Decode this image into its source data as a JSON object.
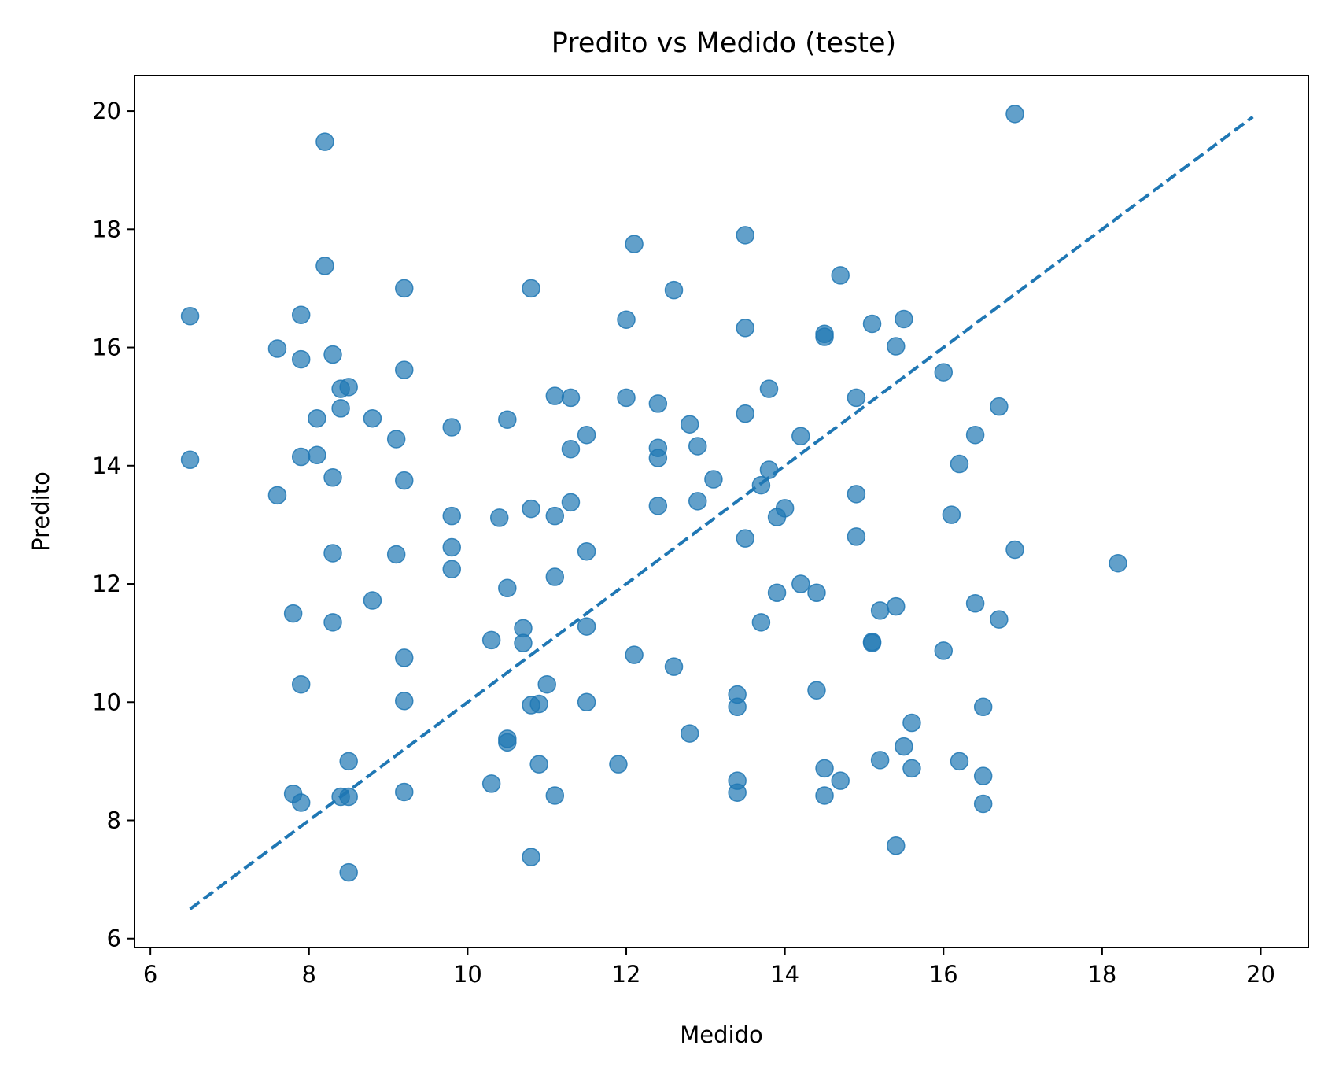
{
  "chart_data": {
    "type": "scatter",
    "title": "Predito vs Medido (teste)",
    "xlabel": "Medido",
    "ylabel": "Predito",
    "xlim": [
      5.8,
      20.6
    ],
    "ylim": [
      5.85,
      20.6
    ],
    "xticks": [
      6,
      8,
      10,
      12,
      14,
      16,
      18,
      20
    ],
    "yticks": [
      6,
      8,
      10,
      12,
      14,
      16,
      18,
      20
    ],
    "grid": false,
    "colors": {
      "points": "#1f77b4",
      "reference_line": "#1f77b4"
    },
    "reference_line": {
      "style": "dashed",
      "x": [
        6.5,
        19.9
      ],
      "y": [
        6.5,
        19.9
      ]
    },
    "series": [
      {
        "points": [
          [
            6.5,
            16.53
          ],
          [
            6.5,
            14.1
          ],
          [
            7.6,
            15.98
          ],
          [
            7.6,
            13.5
          ],
          [
            7.8,
            11.5
          ],
          [
            7.8,
            8.45
          ],
          [
            7.9,
            16.55
          ],
          [
            7.9,
            15.8
          ],
          [
            7.9,
            14.15
          ],
          [
            7.9,
            10.3
          ],
          [
            7.9,
            8.3
          ],
          [
            8.1,
            14.8
          ],
          [
            8.1,
            14.18
          ],
          [
            8.2,
            19.48
          ],
          [
            8.2,
            17.38
          ],
          [
            8.3,
            15.88
          ],
          [
            8.3,
            13.8
          ],
          [
            8.3,
            12.52
          ],
          [
            8.3,
            11.35
          ],
          [
            8.4,
            15.3
          ],
          [
            8.4,
            14.97
          ],
          [
            8.4,
            8.4
          ],
          [
            8.5,
            15.33
          ],
          [
            8.5,
            9.0
          ],
          [
            8.5,
            8.4
          ],
          [
            8.5,
            7.12
          ],
          [
            8.8,
            14.8
          ],
          [
            8.8,
            11.72
          ],
          [
            9.1,
            14.45
          ],
          [
            9.1,
            12.5
          ],
          [
            9.2,
            17.0
          ],
          [
            9.2,
            15.62
          ],
          [
            9.2,
            13.75
          ],
          [
            9.2,
            10.75
          ],
          [
            9.2,
            10.02
          ],
          [
            9.2,
            8.48
          ],
          [
            9.8,
            14.65
          ],
          [
            9.8,
            13.15
          ],
          [
            9.8,
            12.62
          ],
          [
            9.8,
            12.25
          ],
          [
            10.3,
            11.05
          ],
          [
            10.3,
            8.62
          ],
          [
            10.4,
            13.12
          ],
          [
            10.5,
            14.78
          ],
          [
            10.5,
            11.93
          ],
          [
            10.5,
            9.38
          ],
          [
            10.5,
            9.32
          ],
          [
            10.7,
            11.25
          ],
          [
            10.7,
            11.0
          ],
          [
            10.8,
            17.0
          ],
          [
            10.8,
            13.27
          ],
          [
            10.8,
            9.95
          ],
          [
            10.8,
            7.38
          ],
          [
            10.9,
            9.97
          ],
          [
            10.9,
            8.95
          ],
          [
            11.0,
            10.3
          ],
          [
            11.1,
            15.18
          ],
          [
            11.1,
            13.15
          ],
          [
            11.1,
            12.12
          ],
          [
            11.1,
            8.42
          ],
          [
            11.3,
            15.15
          ],
          [
            11.3,
            14.28
          ],
          [
            11.3,
            13.38
          ],
          [
            11.5,
            14.52
          ],
          [
            11.5,
            12.55
          ],
          [
            11.5,
            11.28
          ],
          [
            11.5,
            10.0
          ],
          [
            11.9,
            8.95
          ],
          [
            12.0,
            16.47
          ],
          [
            12.0,
            15.15
          ],
          [
            12.1,
            17.75
          ],
          [
            12.1,
            10.8
          ],
          [
            12.4,
            15.05
          ],
          [
            12.4,
            14.3
          ],
          [
            12.4,
            14.13
          ],
          [
            12.4,
            13.32
          ],
          [
            12.6,
            16.97
          ],
          [
            12.6,
            10.6
          ],
          [
            12.8,
            14.7
          ],
          [
            12.8,
            9.47
          ],
          [
            12.9,
            14.33
          ],
          [
            12.9,
            13.4
          ],
          [
            13.1,
            13.77
          ],
          [
            13.4,
            10.13
          ],
          [
            13.4,
            9.92
          ],
          [
            13.4,
            8.67
          ],
          [
            13.4,
            8.47
          ],
          [
            13.5,
            17.9
          ],
          [
            13.5,
            16.33
          ],
          [
            13.5,
            14.88
          ],
          [
            13.5,
            12.77
          ],
          [
            13.7,
            13.67
          ],
          [
            13.7,
            11.35
          ],
          [
            13.8,
            15.3
          ],
          [
            13.8,
            13.93
          ],
          [
            13.9,
            13.13
          ],
          [
            13.9,
            11.85
          ],
          [
            14.0,
            13.28
          ],
          [
            14.2,
            14.5
          ],
          [
            14.2,
            12.0
          ],
          [
            14.4,
            11.85
          ],
          [
            14.4,
            10.2
          ],
          [
            14.5,
            16.23
          ],
          [
            14.5,
            16.18
          ],
          [
            14.5,
            8.88
          ],
          [
            14.5,
            8.42
          ],
          [
            14.7,
            17.22
          ],
          [
            14.7,
            8.67
          ],
          [
            14.9,
            15.15
          ],
          [
            14.9,
            13.52
          ],
          [
            14.9,
            12.8
          ],
          [
            15.1,
            16.4
          ],
          [
            15.1,
            11.0
          ],
          [
            15.1,
            11.02
          ],
          [
            15.2,
            11.55
          ],
          [
            15.2,
            9.02
          ],
          [
            15.4,
            16.02
          ],
          [
            15.4,
            11.62
          ],
          [
            15.4,
            7.57
          ],
          [
            15.5,
            16.48
          ],
          [
            15.5,
            9.25
          ],
          [
            15.6,
            9.65
          ],
          [
            15.6,
            8.88
          ],
          [
            16.0,
            15.58
          ],
          [
            16.0,
            10.87
          ],
          [
            16.1,
            13.17
          ],
          [
            16.2,
            14.03
          ],
          [
            16.2,
            9.0
          ],
          [
            16.4,
            14.52
          ],
          [
            16.4,
            11.67
          ],
          [
            16.5,
            9.92
          ],
          [
            16.5,
            8.75
          ],
          [
            16.5,
            8.28
          ],
          [
            16.7,
            15.0
          ],
          [
            16.7,
            11.4
          ],
          [
            16.9,
            19.95
          ],
          [
            16.9,
            12.58
          ],
          [
            18.2,
            12.35
          ]
        ]
      }
    ]
  }
}
